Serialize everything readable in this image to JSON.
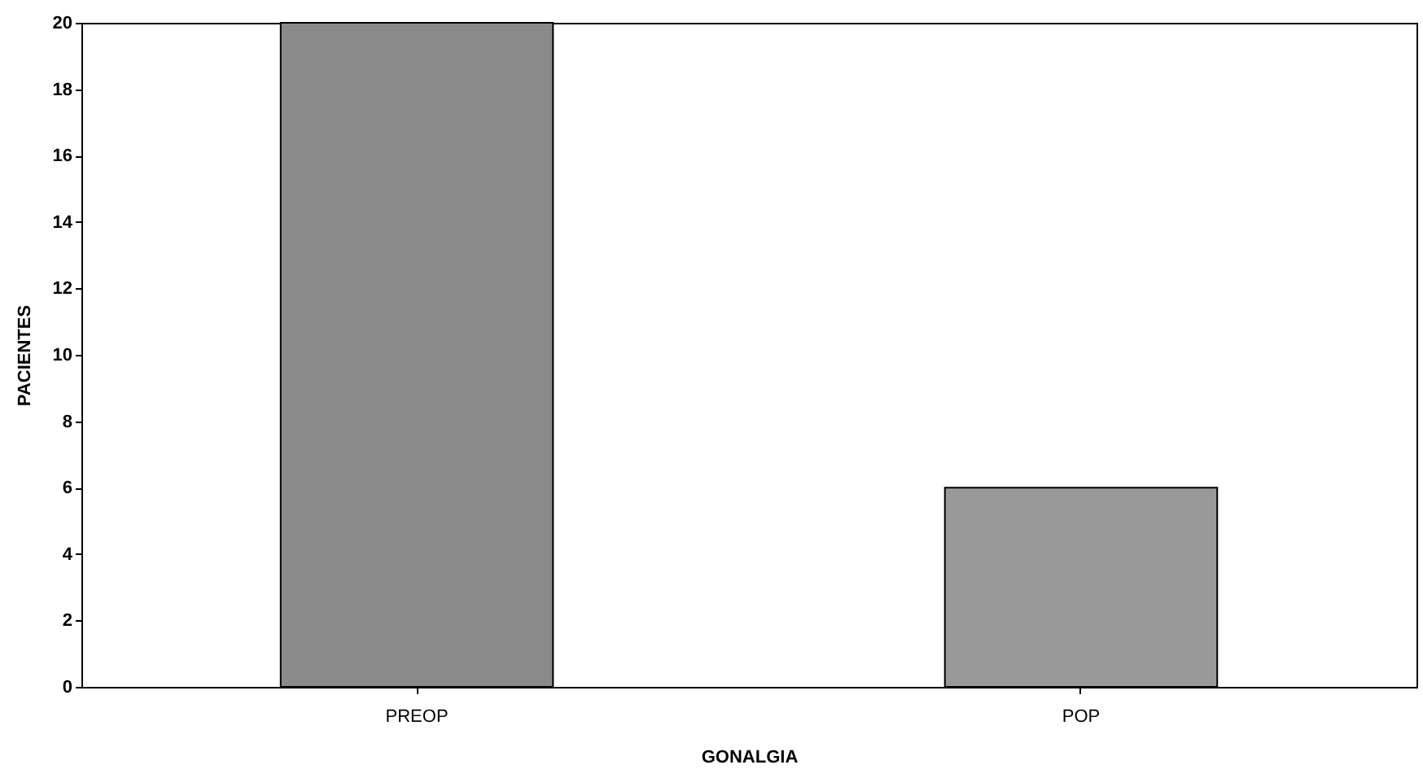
{
  "chart_data": {
    "type": "bar",
    "xlabel": "GONALGIA",
    "ylabel": "PACIENTES",
    "categories": [
      "PREOP",
      "POP"
    ],
    "values": [
      20,
      6
    ],
    "colors": [
      "#8a8a8a",
      "#999999"
    ],
    "ylim": [
      0,
      20
    ],
    "yticks": [
      0,
      2,
      4,
      6,
      8,
      10,
      12,
      14,
      16,
      18,
      20
    ],
    "grid": false,
    "legend": false
  }
}
